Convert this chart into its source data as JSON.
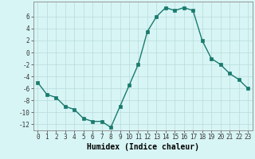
{
  "x": [
    0,
    1,
    2,
    3,
    4,
    5,
    6,
    7,
    8,
    9,
    10,
    11,
    12,
    13,
    14,
    15,
    16,
    17,
    18,
    19,
    20,
    21,
    22,
    23
  ],
  "y": [
    -5.0,
    -7.0,
    -7.5,
    -9.0,
    -9.5,
    -11.0,
    -11.5,
    -11.5,
    -12.5,
    -9.0,
    -5.5,
    -2.0,
    3.5,
    6.0,
    7.5,
    7.0,
    7.5,
    7.0,
    2.0,
    -1.0,
    -2.0,
    -3.5,
    -4.5,
    -6.0
  ],
  "xlim": [
    -0.5,
    23.5
  ],
  "ylim": [
    -13,
    8.5
  ],
  "yticks": [
    -12,
    -10,
    -8,
    -6,
    -4,
    -2,
    0,
    2,
    4,
    6
  ],
  "xticks": [
    0,
    1,
    2,
    3,
    4,
    5,
    6,
    7,
    8,
    9,
    10,
    11,
    12,
    13,
    14,
    15,
    16,
    17,
    18,
    19,
    20,
    21,
    22,
    23
  ],
  "xlabel": "Humidex (Indice chaleur)",
  "line_color": "#1a7a6e",
  "marker": "s",
  "marker_size": 2.2,
  "bg_color": "#d8f5f5",
  "grid_color": "#b8dada",
  "axis_color": "#888888",
  "tick_fontsize": 5.5,
  "xlabel_fontsize": 7.0,
  "linewidth": 1.0
}
